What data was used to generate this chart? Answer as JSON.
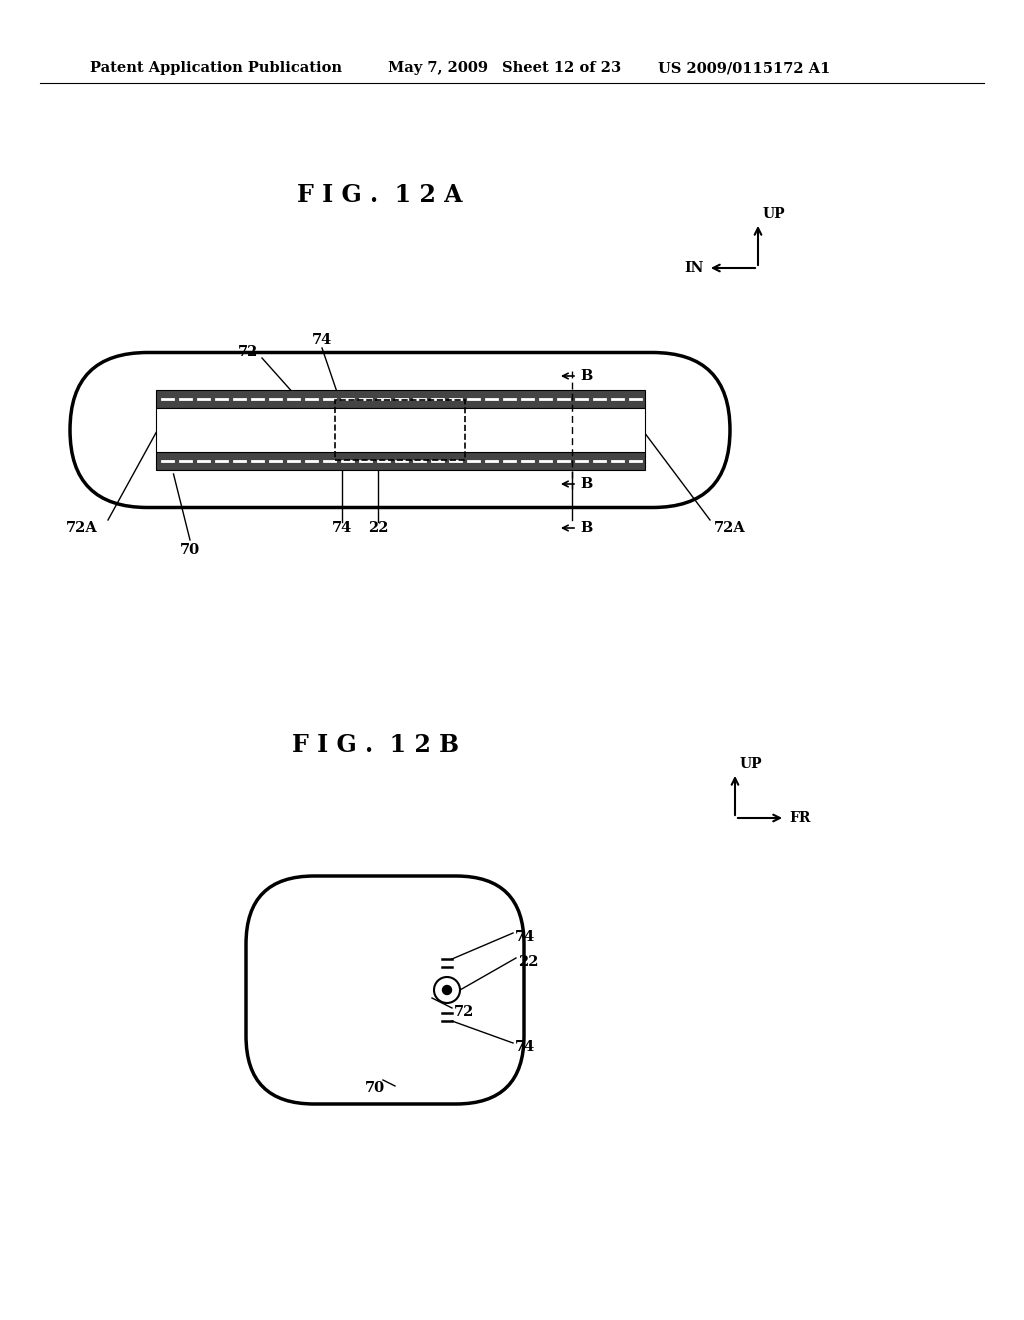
{
  "bg_color": "#ffffff",
  "header_text": "Patent Application Publication",
  "header_date": "May 7, 2009",
  "header_sheet": "Sheet 12 of 23",
  "header_patent": "US 2009/0115172 A1",
  "fig12a_title": "F I G .  1 2 A",
  "fig12b_title": "F I G .  1 2 B"
}
